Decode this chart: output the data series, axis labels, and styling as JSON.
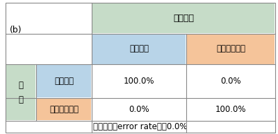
{
  "title_b": "(b)",
  "header_top": "分析結果",
  "col_headers": [
    "ブラジル",
    "ナイジェリア"
  ],
  "row_header_outer": "真\n値",
  "row_headers": [
    "ブラジル",
    "ナイジェリア"
  ],
  "values": [
    [
      "100.0%",
      "0.0%"
    ],
    [
      "0.0%",
      "100.0%"
    ]
  ],
  "footer": "誤判別率（error rate）＝0.0%",
  "color_green_light": "#c6dcc8",
  "color_blue_light": "#b8d4e8",
  "color_orange_light": "#f5c49a",
  "color_white": "#ffffff",
  "color_border": "#888888",
  "bg_color": "#ffffff",
  "fig_width": 4.0,
  "fig_height": 1.94,
  "dpi": 100
}
